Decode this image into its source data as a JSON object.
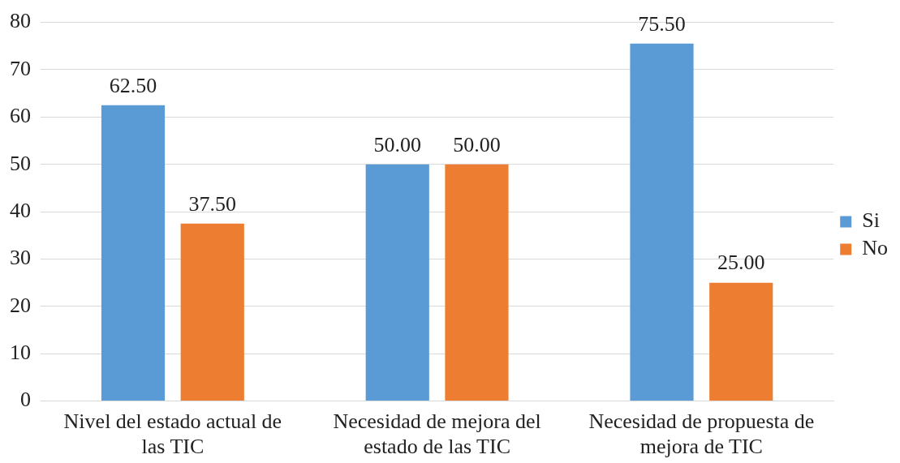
{
  "chart_data": {
    "type": "bar",
    "categories": [
      "Nivel del estado actual de las TIC",
      "Necesidad de mejora del estado de las TIC",
      "Necesidad de propuesta de mejora de TIC"
    ],
    "series": [
      {
        "name": "Si",
        "color": "#5b9bd5",
        "values": [
          62.5,
          50,
          75.5
        ],
        "value_labels": [
          "62.50",
          "50.00",
          "75.50"
        ]
      },
      {
        "name": "No",
        "color": "#ed7d31",
        "values": [
          37.5,
          50,
          25
        ],
        "value_labels": [
          "37.50",
          "50.00",
          "25.00"
        ]
      }
    ],
    "ylim": [
      0,
      80
    ],
    "yticks": [
      0,
      10,
      20,
      30,
      40,
      50,
      60,
      70,
      80
    ],
    "grid": "y",
    "legend": "right"
  }
}
